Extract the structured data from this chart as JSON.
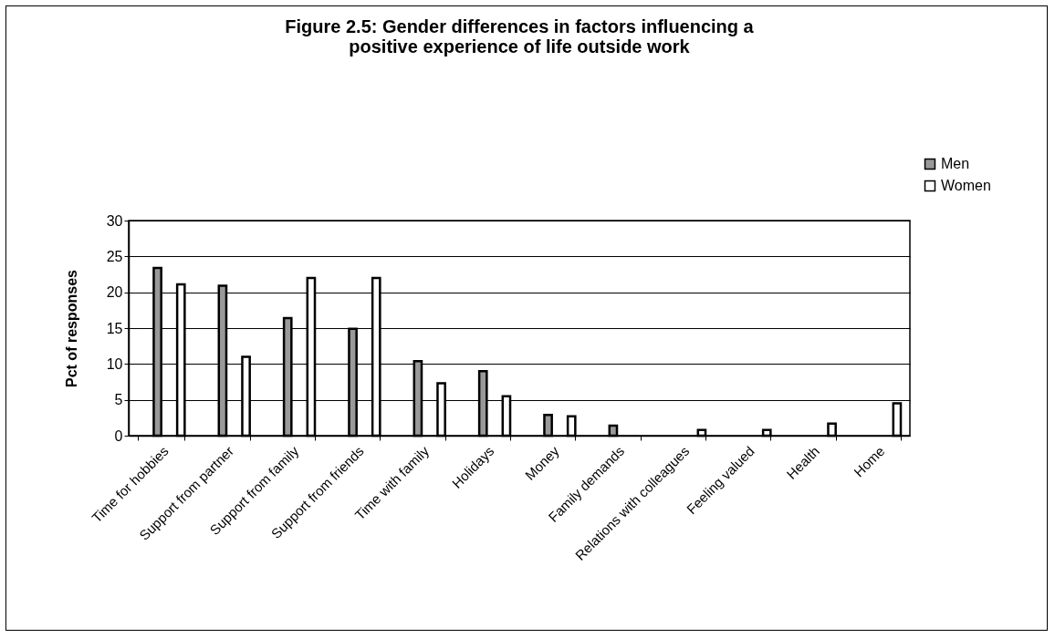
{
  "chart_data": {
    "type": "bar",
    "title": "Figure 2.5: Gender differences in factors influencing a positive experience of life outside work",
    "ylabel": "Pct of responses",
    "categories": [
      "Time for hobbies",
      "Support from partner",
      "Support from family",
      "Support from friends",
      "Time with family",
      "Holidays",
      "Money",
      "Family demands",
      "Relations with colleagues",
      "Feeling valued",
      "Health",
      "Home"
    ],
    "series": [
      {
        "name": "Men",
        "color": "#999999",
        "values": [
          23.4,
          20.9,
          16.4,
          14.9,
          10.4,
          9.0,
          2.9,
          1.4,
          null,
          null,
          null,
          null
        ]
      },
      {
        "name": "Women",
        "color": "#ffffff",
        "values": [
          21.1,
          11.0,
          22.0,
          22.0,
          7.3,
          5.5,
          2.7,
          null,
          0.8,
          0.8,
          1.7,
          4.5
        ]
      }
    ],
    "ylim": [
      0,
      30
    ],
    "yticks": [
      0,
      5,
      10,
      15,
      20,
      25,
      30
    ],
    "grid": "y",
    "legend": "top right"
  }
}
